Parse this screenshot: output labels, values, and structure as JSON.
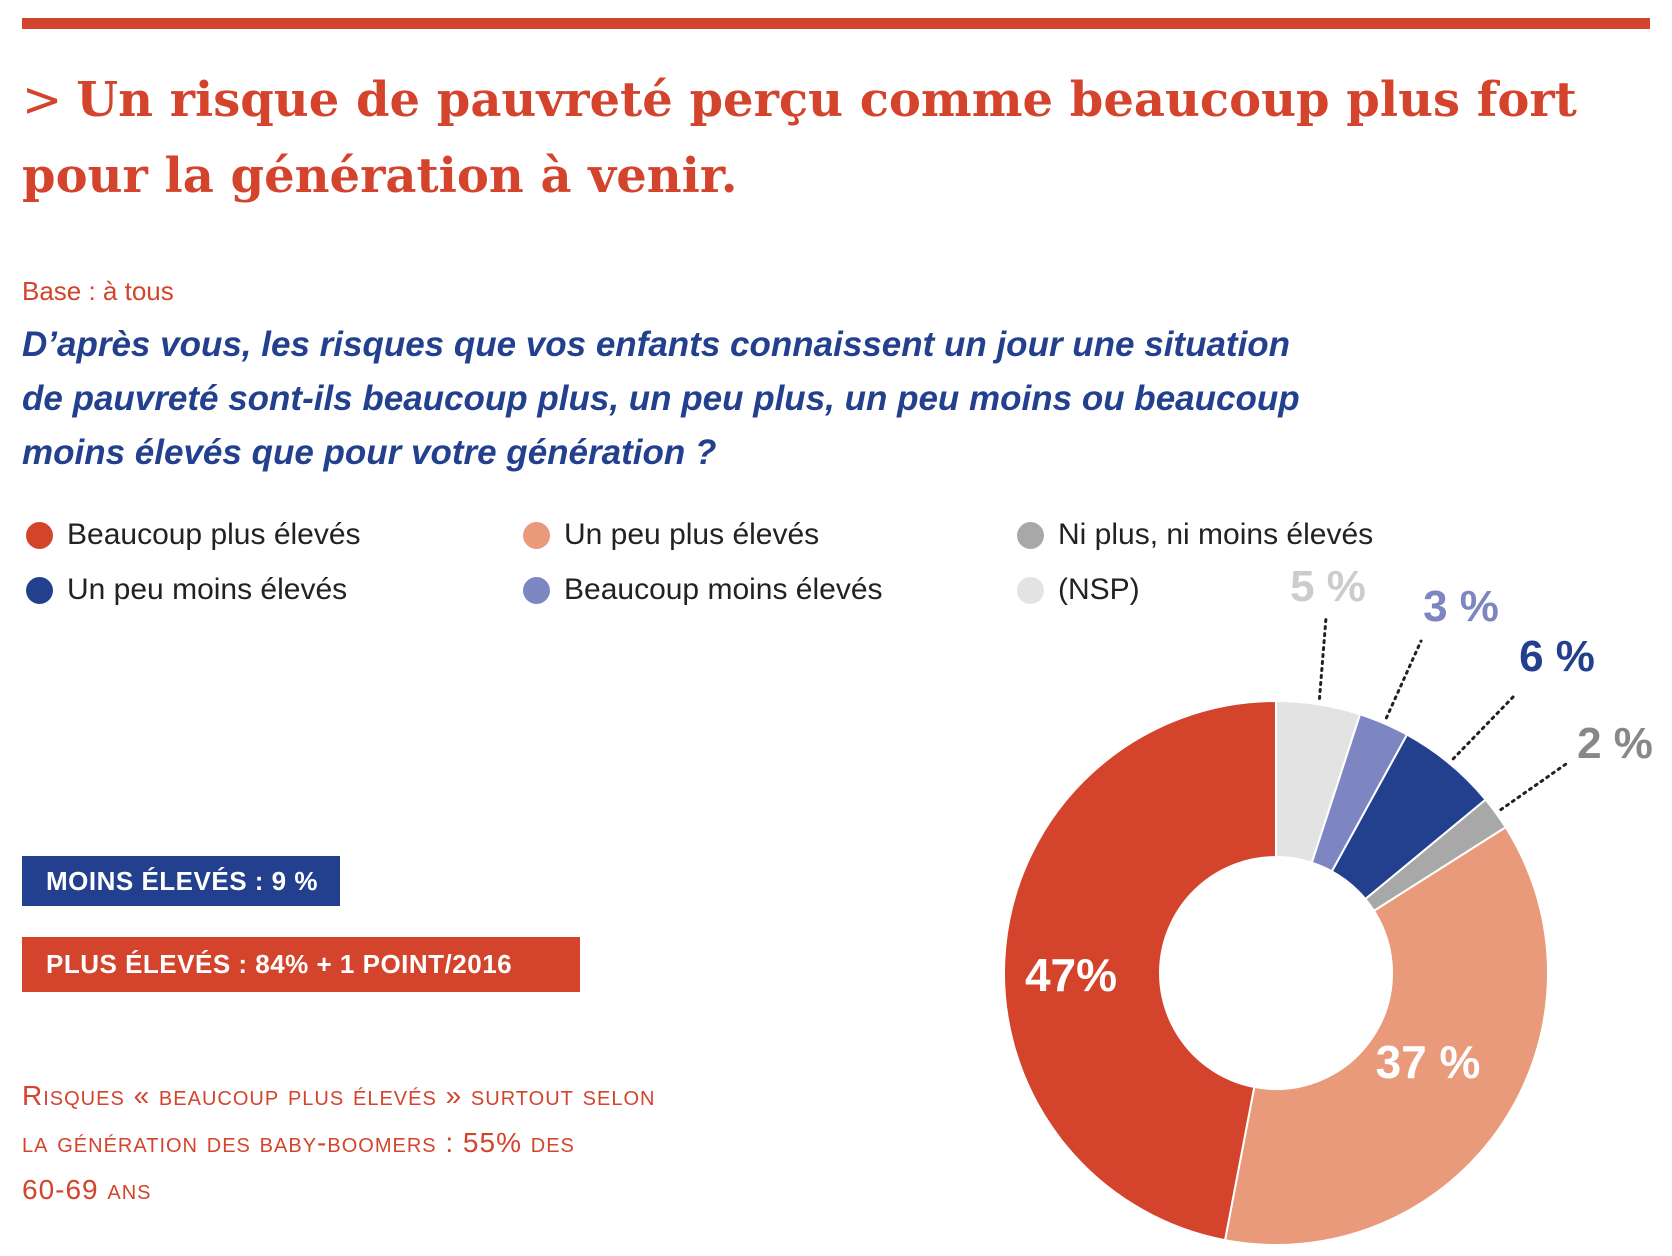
{
  "title": {
    "chevron": ">",
    "line1": "Un risque de pauvreté perçu comme beaucoup plus fort",
    "line2": "pour la génération à venir."
  },
  "base": "Base : à tous",
  "question": {
    "line1": "D’après vous, les risques que vos enfants connaissent un jour une situation",
    "line2": "de pauvreté sont-ils beaucoup plus, un peu plus, un peu moins ou beaucoup",
    "line3": "moins élevés que pour votre génération ?"
  },
  "legend": [
    {
      "label": "Beaucoup plus élevés",
      "color": "#d4432b"
    },
    {
      "label": "Un peu plus élevés",
      "color": "#e89a7a"
    },
    {
      "label": "Ni plus, ni moins élevés",
      "color": "#a8a8a8"
    },
    {
      "label": "Un peu moins élevés",
      "color": "#23408e"
    },
    {
      "label": "Beaucoup moins élevés",
      "color": "#7d86c0"
    },
    {
      "label": "(NSP)",
      "color": "#e3e3e3"
    }
  ],
  "badges": {
    "less": "MOINS ÉLEVÉS : 9 %",
    "more": "PLUS ÉLEVÉS : 84% + 1 POINT/2016"
  },
  "note": {
    "line1": "Risques « beaucoup plus élevés » surtout selon",
    "line2": "la génération des baby-boomers : 55% des",
    "line3": "60-69 ans"
  },
  "chart_data": {
    "type": "pie",
    "variant": "donut",
    "start": "12 o'clock, clockwise",
    "slices": [
      {
        "label": "(NSP)",
        "value": 5,
        "display": "5 %",
        "color": "#e3e3e3",
        "label_color": "#cccccc"
      },
      {
        "label": "Beaucoup moins élevés",
        "value": 3,
        "display": "3 %",
        "color": "#7d86c0",
        "label_color": "#7d86c0"
      },
      {
        "label": "Un peu moins élevés",
        "value": 6,
        "display": "6 %",
        "color": "#23408e",
        "label_color": "#23408e"
      },
      {
        "label": "Ni plus, ni moins élevés",
        "value": 2,
        "display": "2 %",
        "color": "#a8a8a8",
        "label_color": "#888888"
      },
      {
        "label": "Un peu plus élevés",
        "value": 37,
        "display": "37 %",
        "color": "#e89a7a",
        "label_color": "#ffffff"
      },
      {
        "label": "Beaucoup plus élevés",
        "value": 47,
        "display": "47%",
        "color": "#d4432b",
        "label_color": "#ffffff"
      }
    ]
  }
}
